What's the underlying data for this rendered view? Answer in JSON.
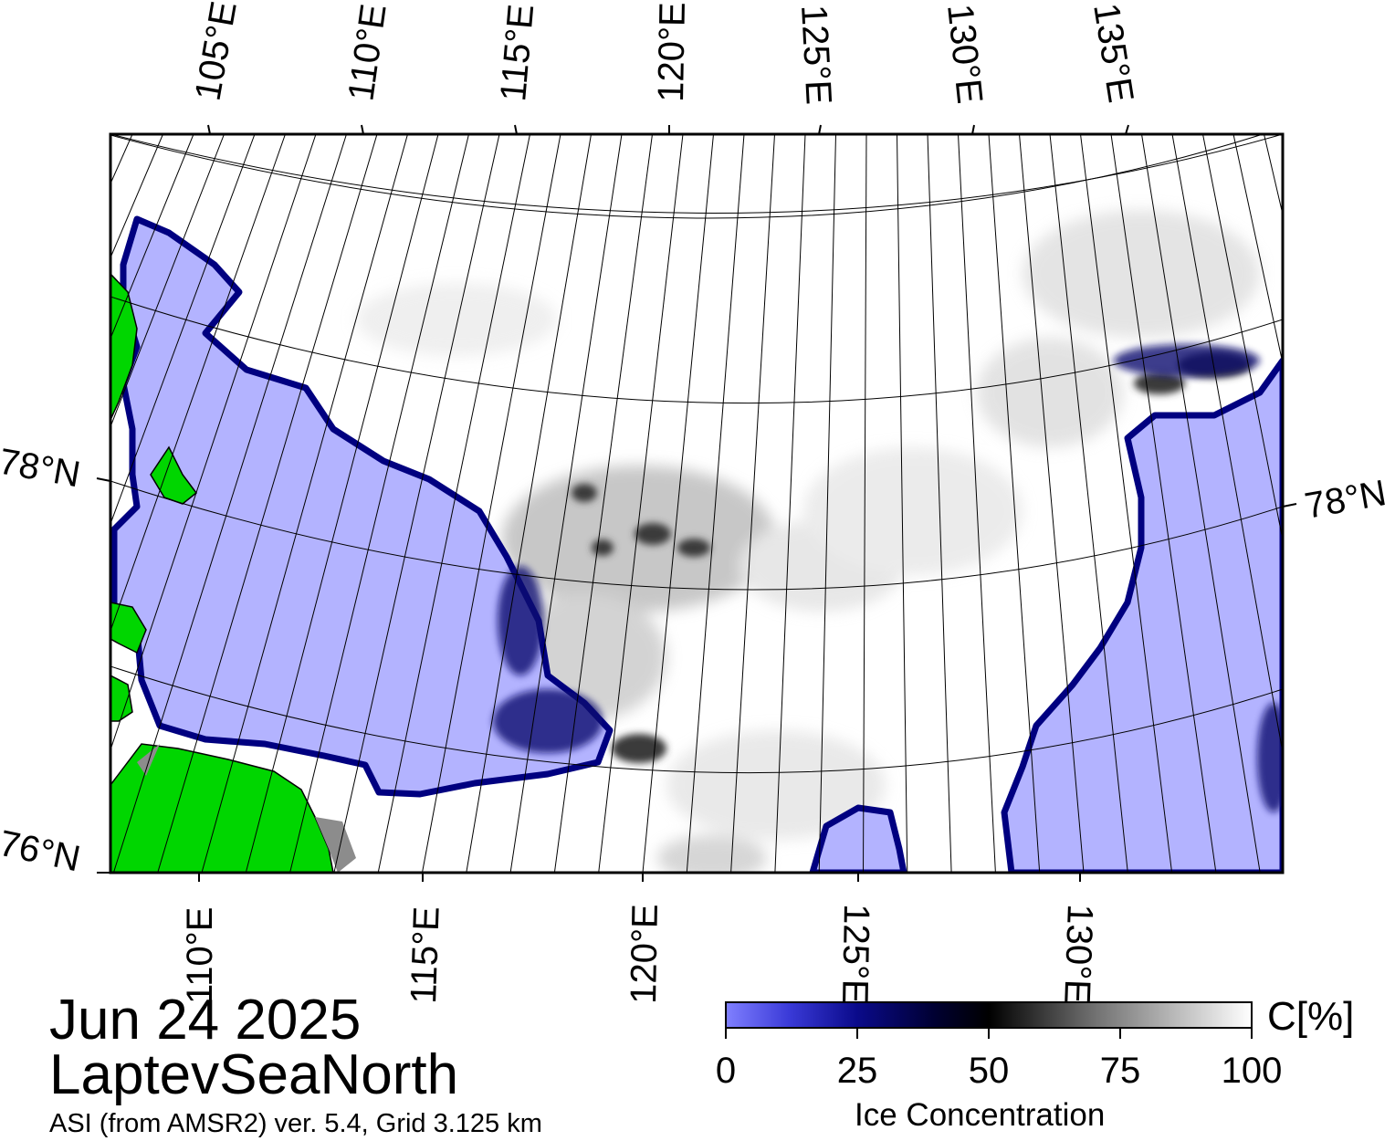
{
  "map": {
    "date": "Jun 24 2025",
    "region": "LaptevSeaNorth",
    "source": "ASI (from AMSR2) ver. 5.4,  Grid 3.125 km",
    "top_lon_labels": [
      "105°E",
      "110°E",
      "115°E",
      "120°E",
      "125°E",
      "130°E",
      "135°E"
    ],
    "bottom_lon_labels": [
      "110°E",
      "115°E",
      "120°E",
      "125°E",
      "130°E"
    ],
    "left_lat_labels": [
      "78°N",
      "76°N"
    ],
    "right_lat_labels": [
      "78°N"
    ],
    "colors": {
      "open_water": "#b3b3ff",
      "land": "#00d600",
      "coast_fringe": "#8c8c8c",
      "ice_full": "#ffffff",
      "low_ice": "#0000aa"
    }
  },
  "colorbar": {
    "title": "Ice Concentration",
    "unit": "C[%]",
    "ticks": [
      "0",
      "25",
      "50",
      "75",
      "100"
    ],
    "range": [
      0,
      100
    ]
  }
}
